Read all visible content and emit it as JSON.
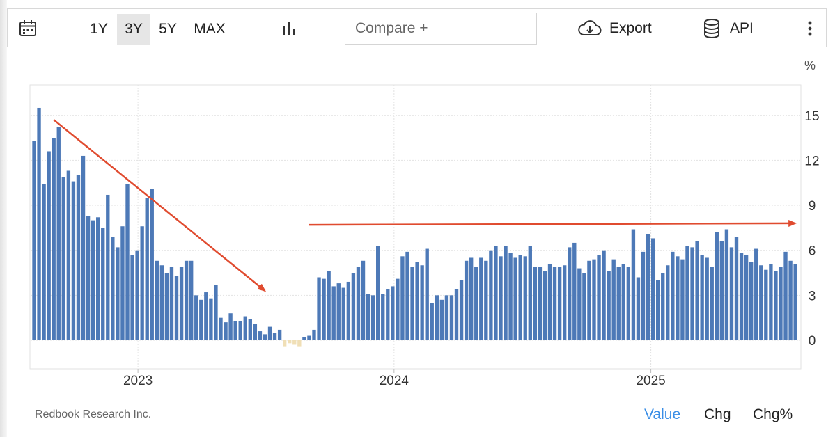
{
  "toolbar": {
    "calendar_icon": "calendar-icon",
    "ranges": [
      "1Y",
      "3Y",
      "5Y",
      "MAX"
    ],
    "active_range": "3Y",
    "chart_type_icon": "bar-chart-icon",
    "compare_placeholder": "Compare +",
    "export_label": "Export",
    "export_icon": "cloud-download-icon",
    "api_label": "API",
    "api_icon": "database-icon",
    "more_icon": "vertical-dots-icon"
  },
  "chart_data": {
    "type": "bar",
    "unit": "%",
    "x_start": "2022-08-06",
    "x_step_days": 7,
    "xticks": [
      "2023",
      "2024",
      "2025"
    ],
    "yticks": [
      0,
      3,
      6,
      9,
      12,
      15
    ],
    "ylim": [
      -0.6,
      16.8
    ],
    "grid": true,
    "colors": {
      "positive": "#4d79b7",
      "negative": "#f0dfb6"
    },
    "annotations": [
      {
        "type": "arrow",
        "color": "#e04b2f",
        "from": [
          "2022-09-03",
          14.7
        ],
        "to": [
          "2023-07-01",
          3.3
        ]
      },
      {
        "type": "arrow",
        "color": "#e04b2f",
        "from": [
          "2023-09-02",
          7.7
        ],
        "to": [
          "2025-07-26",
          7.8
        ]
      }
    ],
    "values": [
      13.3,
      15.5,
      10.4,
      12.6,
      13.5,
      14.2,
      10.9,
      11.3,
      10.6,
      11.0,
      12.3,
      8.3,
      8.0,
      8.2,
      7.5,
      9.7,
      6.9,
      6.2,
      7.6,
      10.4,
      5.7,
      6.0,
      7.6,
      9.5,
      10.1,
      5.3,
      5.0,
      4.5,
      4.9,
      4.3,
      4.9,
      5.3,
      5.3,
      3.0,
      2.7,
      3.2,
      2.8,
      3.7,
      1.5,
      1.2,
      1.8,
      1.3,
      1.3,
      1.6,
      1.4,
      1.1,
      0.6,
      0.4,
      0.9,
      0.5,
      0.7,
      -0.4,
      -0.2,
      -0.3,
      -0.4,
      0.2,
      0.3,
      0.7,
      4.2,
      4.1,
      4.6,
      3.6,
      3.8,
      3.5,
      3.9,
      4.5,
      4.9,
      5.3,
      3.1,
      3.0,
      6.3,
      3.1,
      3.4,
      3.6,
      4.1,
      5.6,
      5.9,
      4.9,
      5.2,
      5.0,
      6.1,
      2.5,
      3.0,
      2.7,
      3.0,
      3.0,
      3.4,
      4.0,
      5.3,
      5.5,
      4.9,
      5.5,
      5.3,
      6.0,
      6.3,
      5.6,
      6.3,
      5.8,
      5.5,
      5.7,
      5.6,
      6.3,
      4.9,
      4.9,
      4.6,
      5.1,
      4.9,
      4.9,
      5.0,
      6.2,
      6.5,
      4.8,
      4.5,
      5.3,
      5.4,
      5.7,
      6.0,
      4.6,
      5.4,
      4.9,
      5.1,
      4.9,
      7.4,
      4.2,
      5.9,
      7.1,
      6.8,
      4.0,
      4.5,
      5.0,
      5.9,
      5.6,
      5.4,
      6.3,
      6.2,
      6.6,
      5.7,
      5.5,
      4.9,
      7.2,
      6.6,
      7.4,
      6.2,
      6.9,
      5.8,
      5.7,
      5.2,
      6.1,
      5.0,
      4.7,
      5.1,
      4.6,
      4.9,
      5.9,
      5.3,
      5.1
    ]
  },
  "footer": {
    "source": "Redbook Research Inc.",
    "tabs": [
      "Value",
      "Chg",
      "Chg%"
    ],
    "active_tab": "Value"
  }
}
